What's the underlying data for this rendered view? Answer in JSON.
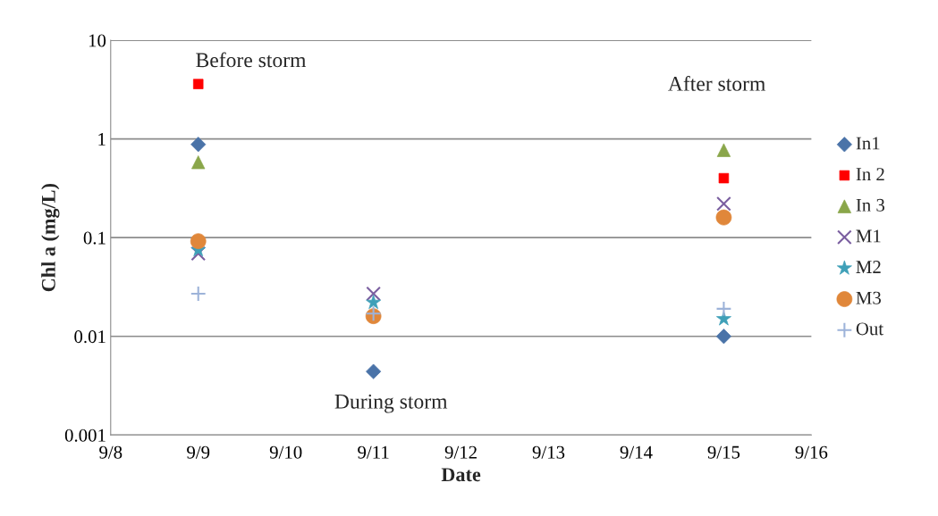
{
  "chart_data": {
    "type": "scatter",
    "xlabel": "Date",
    "ylabel": "Chl a (mg/L)",
    "x": [
      "--09-09",
      "--09-11",
      "--09-15"
    ],
    "series": [
      {
        "name": "In1",
        "color": "#4a73a8",
        "marker": "diamond",
        "values": [
          0.88,
          0.0044,
          0.01
        ]
      },
      {
        "name": "In 2",
        "color": "#ff0000",
        "marker": "square",
        "values": [
          3.6,
          null,
          0.4
        ]
      },
      {
        "name": "In 3",
        "color": "#8aa64a",
        "marker": "triangle",
        "values": [
          0.58,
          null,
          0.77
        ]
      },
      {
        "name": "M1",
        "color": "#7b5fa0",
        "marker": "cross",
        "values": [
          0.069,
          0.027,
          0.22
        ]
      },
      {
        "name": "M2",
        "color": "#3fa0b8",
        "marker": "star",
        "values": [
          0.075,
          0.022,
          0.015
        ]
      },
      {
        "name": "M3",
        "color": "#e0873a",
        "marker": "circle",
        "values": [
          0.092,
          0.016,
          0.16
        ]
      },
      {
        "name": "Out",
        "color": "#9db3d9",
        "marker": "plus",
        "values": [
          0.027,
          0.017,
          0.019
        ]
      }
    ],
    "log": "y",
    "ylim": [
      0.001,
      10
    ],
    "yticks": [
      {
        "value": 0.001,
        "label": "0.001"
      },
      {
        "value": 0.01,
        "label": "0.01"
      },
      {
        "value": 0.1,
        "label": "0.1"
      },
      {
        "value": 1,
        "label": "1"
      },
      {
        "value": 10,
        "label": "10"
      }
    ],
    "xlim": [
      "--09-08",
      "--09-16"
    ],
    "xticks": [
      {
        "value": "--09-08",
        "label": "9/8"
      },
      {
        "value": "--09-09",
        "label": "9/9"
      },
      {
        "value": "--09-10",
        "label": "9/10"
      },
      {
        "value": "--09-11",
        "label": "9/11"
      },
      {
        "value": "--09-12",
        "label": "9/12"
      },
      {
        "value": "--09-13",
        "label": "9/13"
      },
      {
        "value": "--09-14",
        "label": "9/14"
      },
      {
        "value": "--09-15",
        "label": "9/15"
      },
      {
        "value": "--09-16",
        "label": "9/16"
      }
    ],
    "annotations": [
      "Before storm",
      "During storm",
      "After storm"
    ],
    "grid": "y",
    "legend": "right"
  }
}
